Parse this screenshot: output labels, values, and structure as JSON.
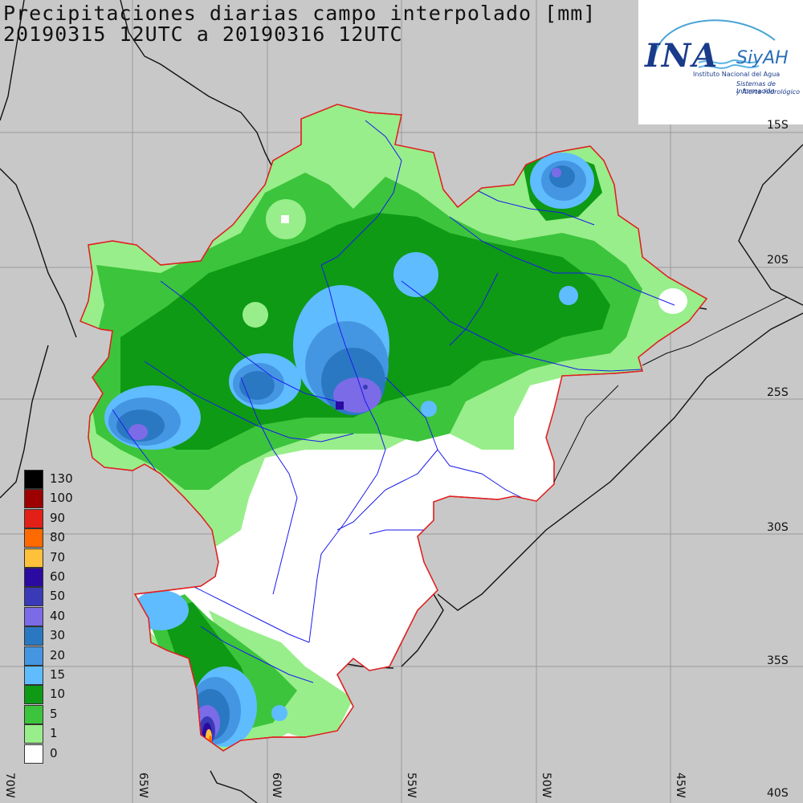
{
  "title": {
    "line1": "Precipitaciones diarias campo interpolado [mm]",
    "line2": "20190315 12UTC a 20190316 12UTC"
  },
  "logo": {
    "brand": "INA",
    "subbrand": "SiyAH",
    "org_name": "Instituto Nacional del Agua",
    "system_line1": "Sistemas de Información",
    "system_line2": "y Alerta Hidrológico"
  },
  "colors": {
    "background": "#c8c8c8",
    "basin_outline": "#e02020",
    "rivers": "#1a1aee",
    "borders": "#111111",
    "gridlines": "#9a9a9a"
  },
  "legend": [
    {
      "label": "130",
      "color": "#000000"
    },
    {
      "label": "100",
      "color": "#9c0000"
    },
    {
      "label": "90",
      "color": "#e32017"
    },
    {
      "label": "80",
      "color": "#ff6a00"
    },
    {
      "label": "70",
      "color": "#ffc03c"
    },
    {
      "label": "60",
      "color": "#2a0aa0"
    },
    {
      "label": "50",
      "color": "#3a3ab8"
    },
    {
      "label": "40",
      "color": "#7b6be6"
    },
    {
      "label": "30",
      "color": "#2b78c2"
    },
    {
      "label": "20",
      "color": "#4596e2"
    },
    {
      "label": "15",
      "color": "#5fbcff"
    },
    {
      "label": "10",
      "color": "#0e9a14"
    },
    {
      "label": "5",
      "color": "#3cc43c"
    },
    {
      "label": "1",
      "color": "#98ee8a"
    },
    {
      "label": "0",
      "color": "#ffffff"
    }
  ],
  "lat_labels": [
    "15S",
    "20S",
    "25S",
    "30S",
    "35S",
    "40S"
  ],
  "lon_labels": [
    "70W",
    "65W",
    "60W",
    "55W",
    "50W",
    "45W"
  ]
}
